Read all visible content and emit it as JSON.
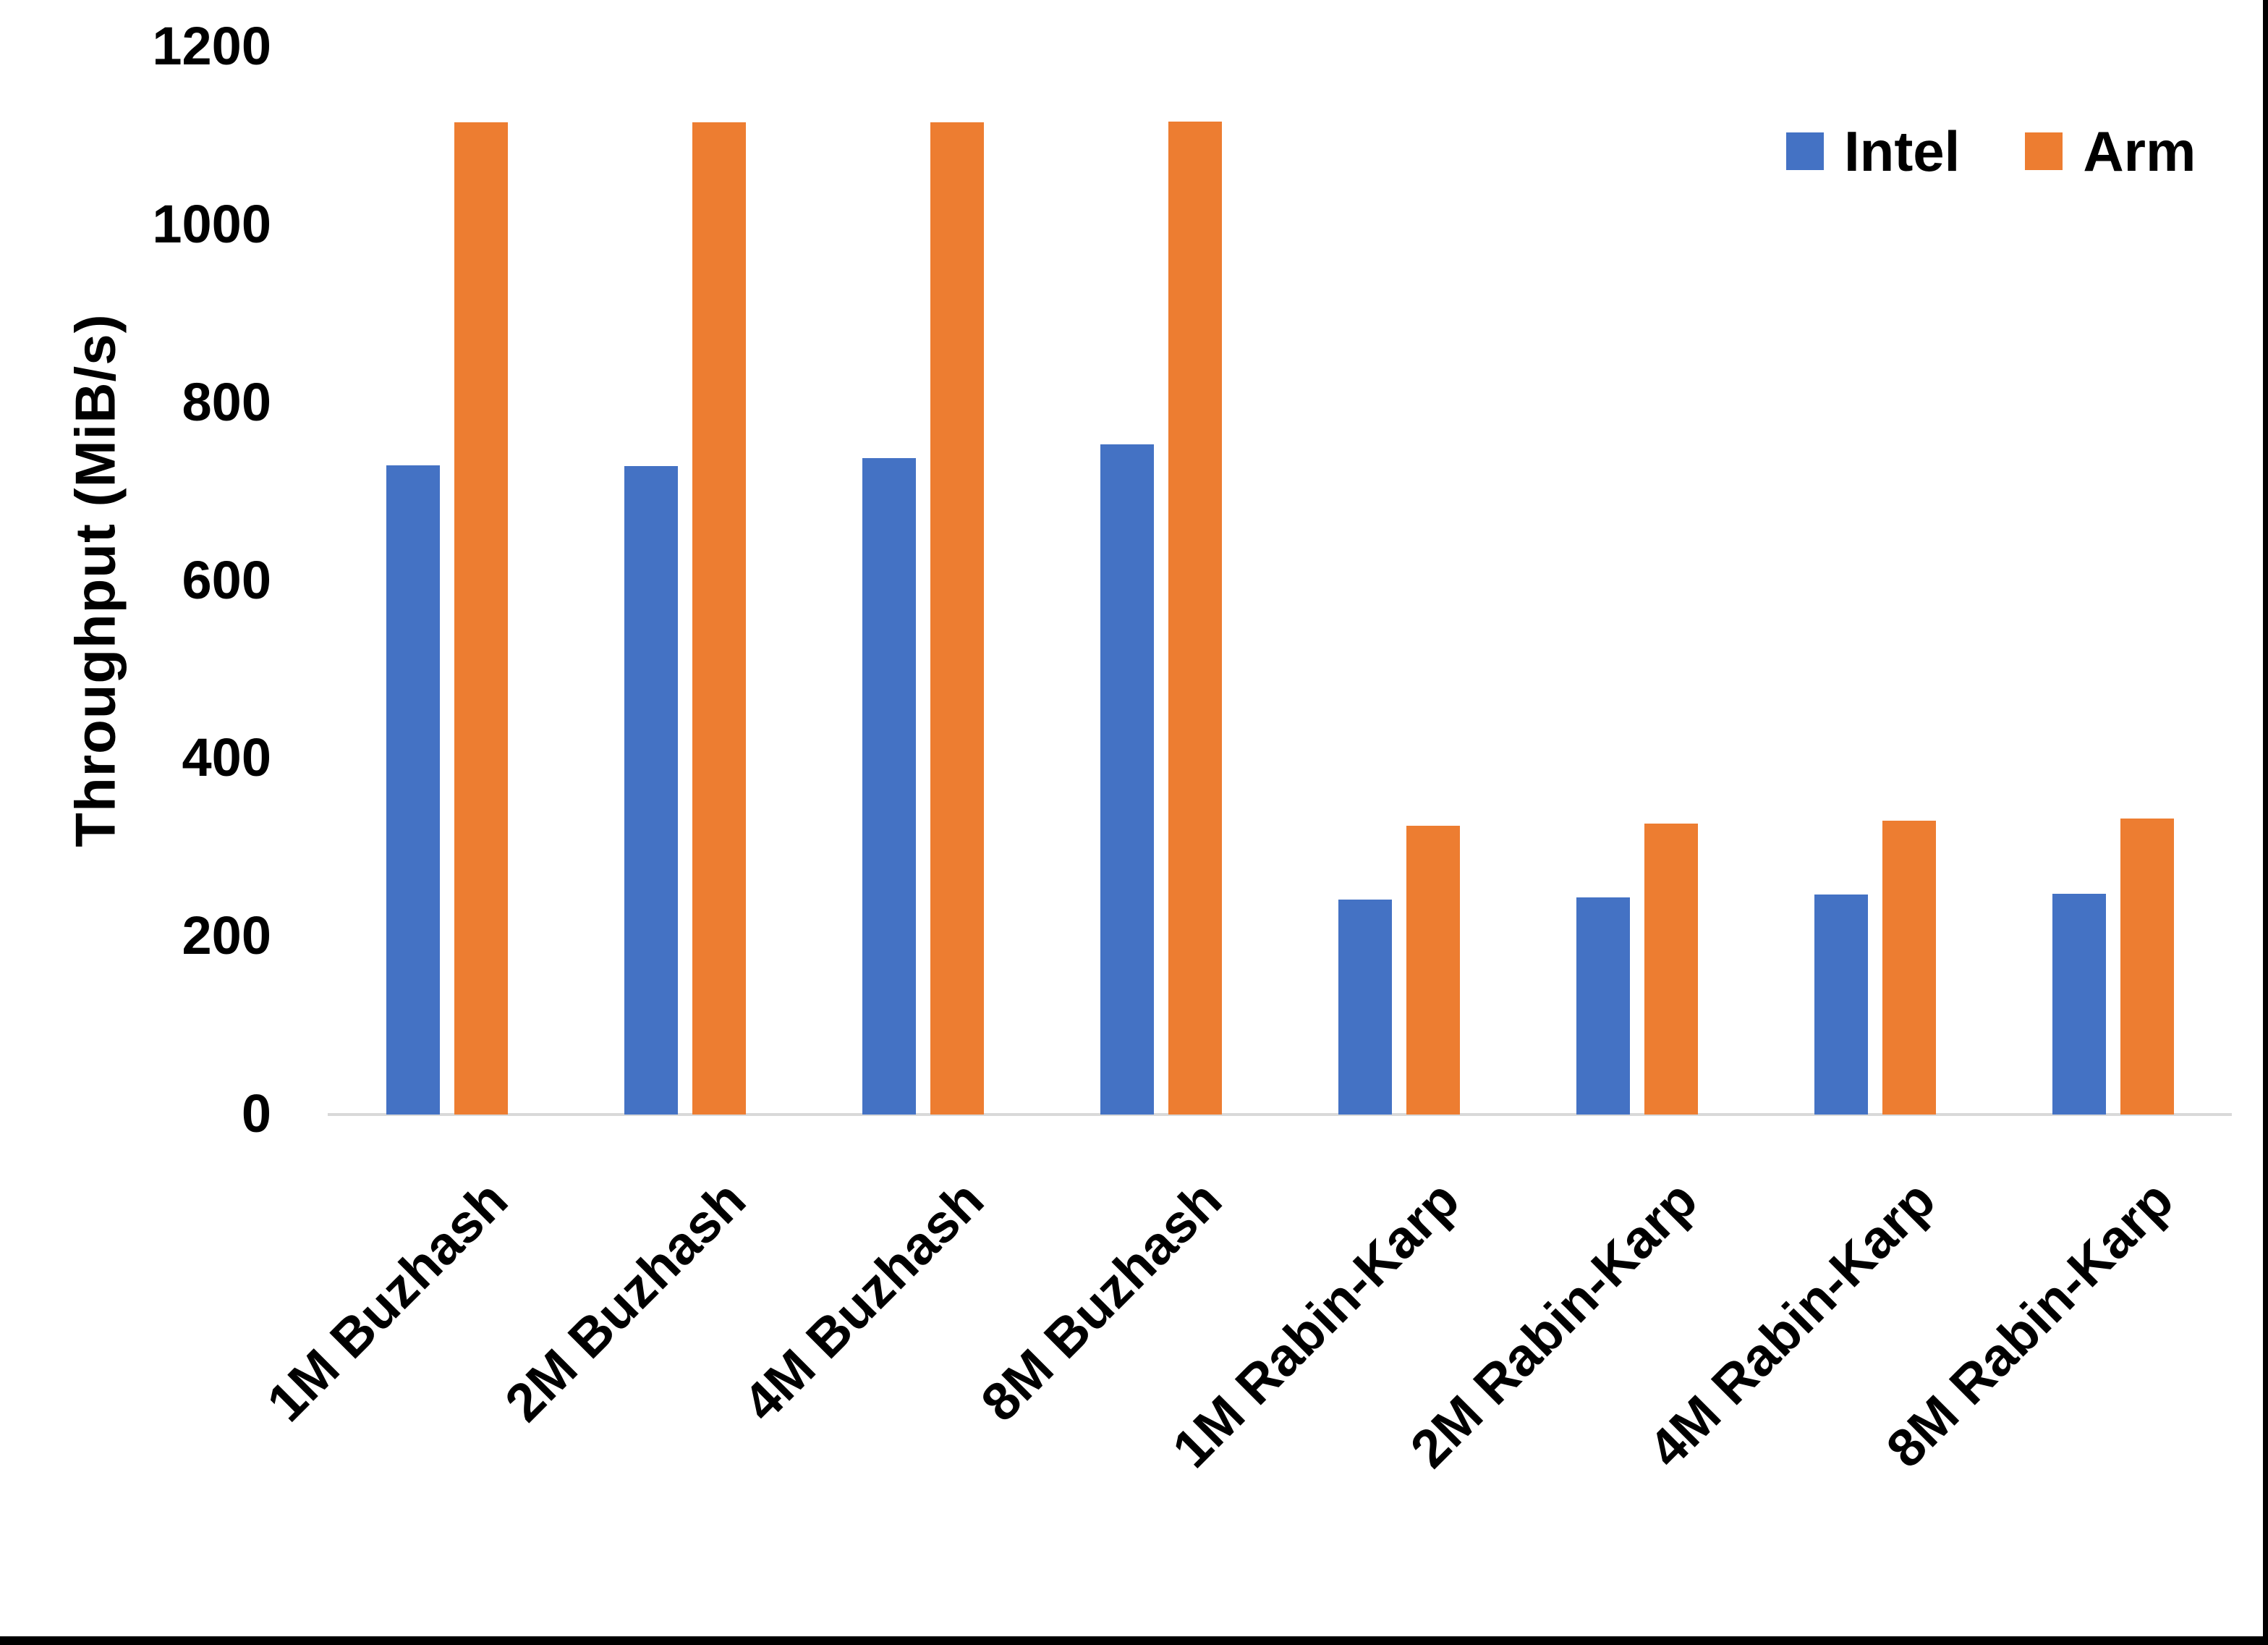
{
  "chart_data": {
    "type": "bar",
    "title": "",
    "ylabel": "Throughput (MiB/s)",
    "xlabel": "",
    "ylim": [
      0,
      1200
    ],
    "yticks": [
      0,
      200,
      400,
      600,
      800,
      1000,
      1200
    ],
    "grid": false,
    "legend_position": "top-right",
    "categories": [
      "1M Buzhash",
      "2M Buzhash",
      "4M Buzhash",
      "8M Buzhash",
      "1M Rabin-Karp",
      "2M Rabin-Karp",
      "4M Rabin-Karp",
      "8M Rabin-Karp"
    ],
    "series": [
      {
        "name": "Intel",
        "color": "#4472C4",
        "values": [
          730,
          729,
          738,
          753,
          242,
          244,
          247,
          248
        ]
      },
      {
        "name": "Arm",
        "color": "#ED7D31",
        "values": [
          1115,
          1115,
          1115,
          1116,
          325,
          327,
          330,
          333
        ]
      }
    ]
  },
  "colors": {
    "axis_line": "#D9D9D9",
    "text": "#000000",
    "frame_edge": "#000000"
  }
}
